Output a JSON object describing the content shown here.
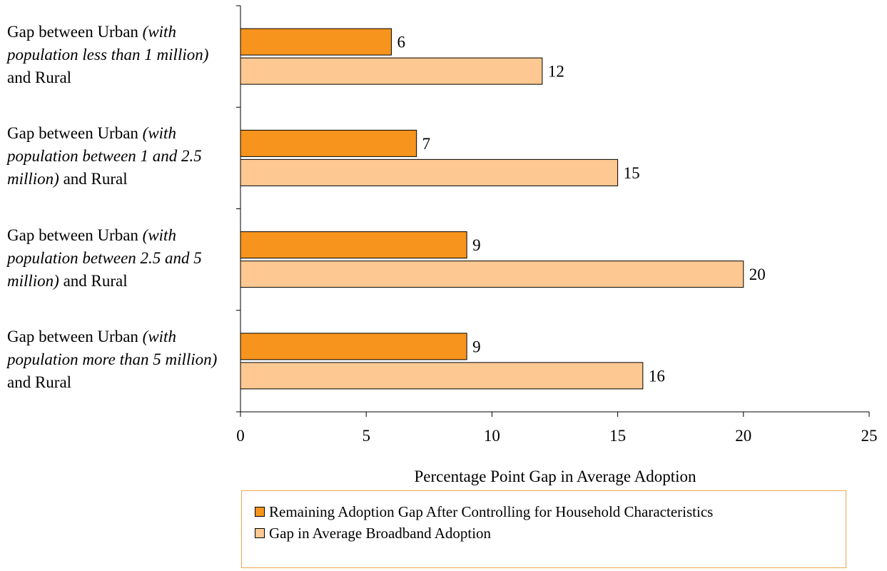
{
  "chart_data": {
    "type": "bar",
    "orientation": "horizontal",
    "categories": [
      {
        "pre": "Gap between Urban ",
        "italic": "(with population less than 1 million)",
        "post": " and Rural"
      },
      {
        "pre": "Gap between Urban ",
        "italic": "(with population between 1 and 2.5 million)",
        "post": " and Rural"
      },
      {
        "pre": "Gap between Urban ",
        "italic": "(with population between 2.5 and 5 million)",
        "post": " and Rural"
      },
      {
        "pre": "Gap between Urban ",
        "italic": "(with population more than 5 million)",
        "post": " and Rural"
      }
    ],
    "series": [
      {
        "name": "Remaining Adoption Gap After Controlling for Household Characteristics",
        "values": [
          6,
          7,
          9,
          9
        ],
        "color": "#f7941d"
      },
      {
        "name": "Gap in Average Broadband Adoption",
        "values": [
          12,
          15,
          20,
          16
        ],
        "color": "#fdc891"
      }
    ],
    "xlabel": "Percentage Point Gap in Average Adoption",
    "xlim": [
      0,
      25
    ],
    "xticks": [
      0,
      5,
      10,
      15,
      20,
      25
    ],
    "legend_position": "bottom",
    "grid": false
  }
}
